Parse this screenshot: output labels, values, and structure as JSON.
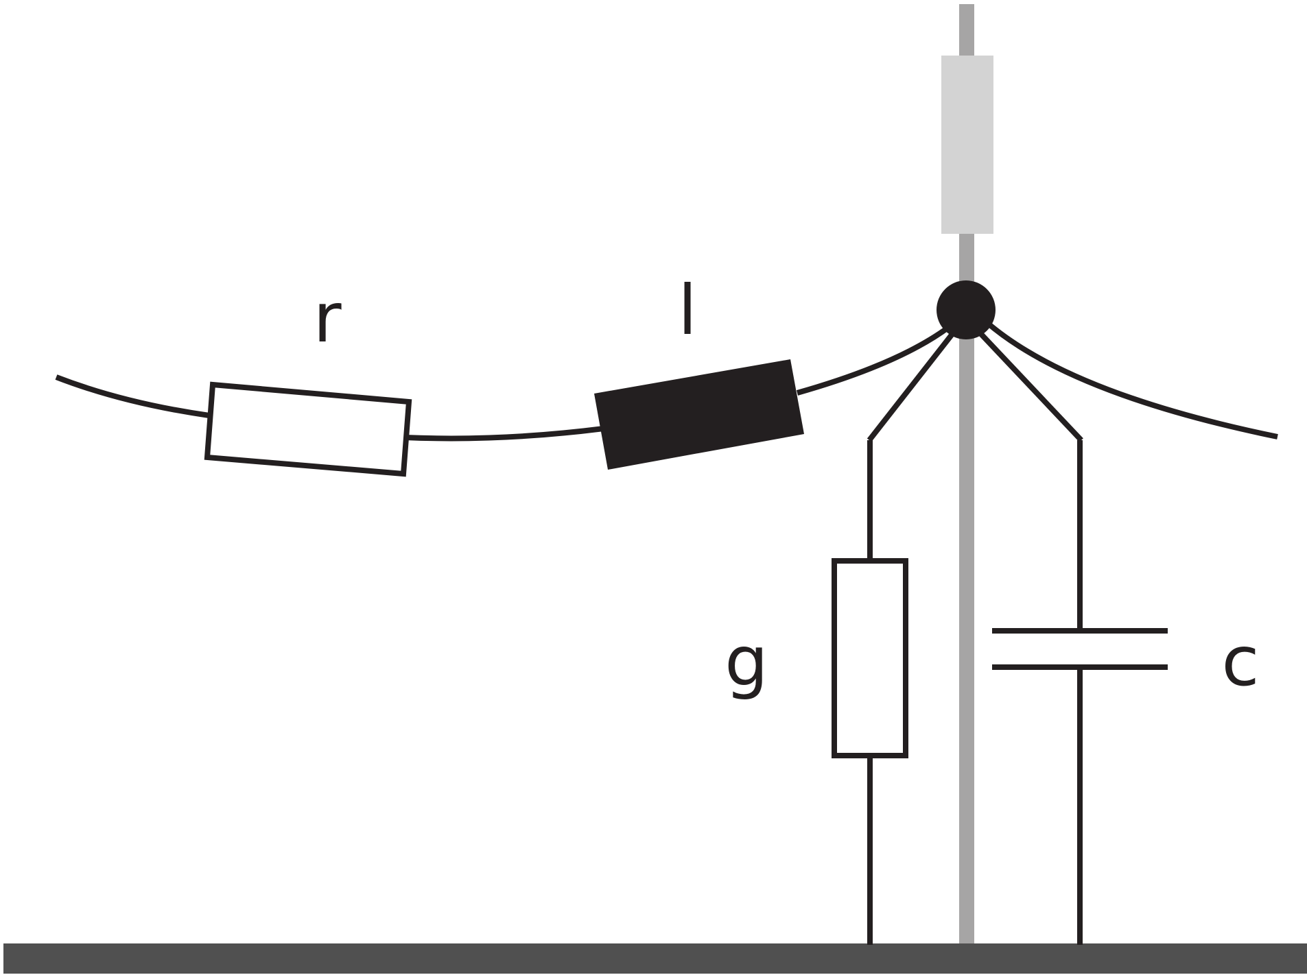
{
  "labels": {
    "resistor": "r",
    "inductor": "l",
    "conductance": "g",
    "capacitor": "c"
  },
  "colors": {
    "ink": "#231f20",
    "pole": "#a6a5a5",
    "insulator": "#d3d3d3",
    "ground": "#505050",
    "background": "#ffffff"
  }
}
